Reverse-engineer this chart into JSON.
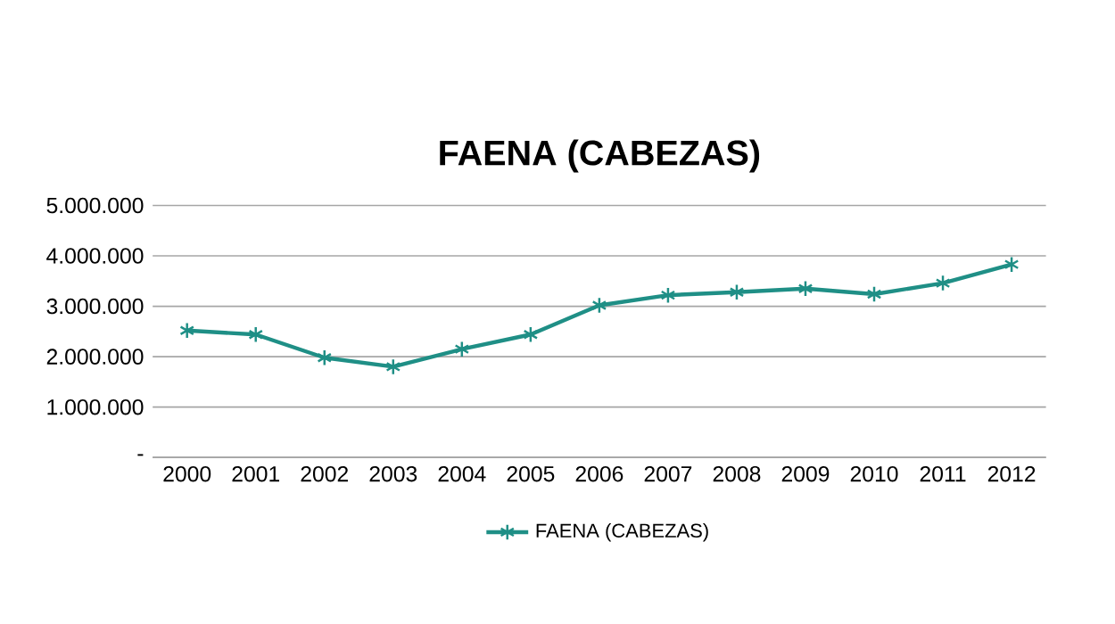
{
  "chart_data": {
    "type": "line",
    "title": "FAENA (CABEZAS)",
    "categories": [
      "2000",
      "2001",
      "2002",
      "2003",
      "2004",
      "2005",
      "2006",
      "2007",
      "2008",
      "2009",
      "2010",
      "2011",
      "2012"
    ],
    "series": [
      {
        "name": "FAENA (CABEZAS)",
        "color": "#1f8f86",
        "values": [
          2520000,
          2440000,
          1980000,
          1800000,
          2150000,
          2440000,
          3020000,
          3220000,
          3280000,
          3350000,
          3240000,
          3460000,
          3830000
        ]
      }
    ],
    "ylim": [
      0,
      5000000
    ],
    "yticks": [
      {
        "value": 0,
        "label": "-"
      },
      {
        "value": 1000000,
        "label": "1.000.000"
      },
      {
        "value": 2000000,
        "label": "2.000.000"
      },
      {
        "value": 3000000,
        "label": "3.000.000"
      },
      {
        "value": 4000000,
        "label": "4.000.000"
      },
      {
        "value": 5000000,
        "label": "5.000.000"
      }
    ],
    "grid": "y",
    "legend": "bottom",
    "marker": "cross",
    "line_style": "solid"
  }
}
